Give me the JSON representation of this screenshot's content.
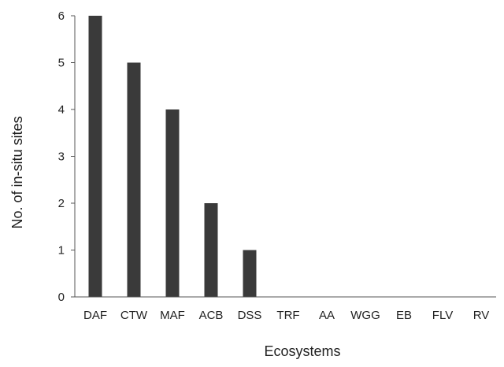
{
  "chart_data": {
    "type": "bar",
    "title": "",
    "xlabel": "Ecosystems",
    "ylabel": "No. of in-situ sites",
    "categories": [
      "DAF",
      "CTW",
      "MAF",
      "ACB",
      "DSS",
      "TRF",
      "AA",
      "WGG",
      "EB",
      "FLV",
      "RV"
    ],
    "values": [
      6,
      5,
      4,
      2,
      1,
      0,
      0,
      0,
      0,
      0,
      0
    ],
    "ylim": [
      0,
      6
    ],
    "yticks": [
      0,
      1,
      2,
      3,
      4,
      5,
      6
    ],
    "grid": false,
    "legend": "none",
    "bar_color": "#3a3a3a",
    "axis_color": "#555555"
  }
}
